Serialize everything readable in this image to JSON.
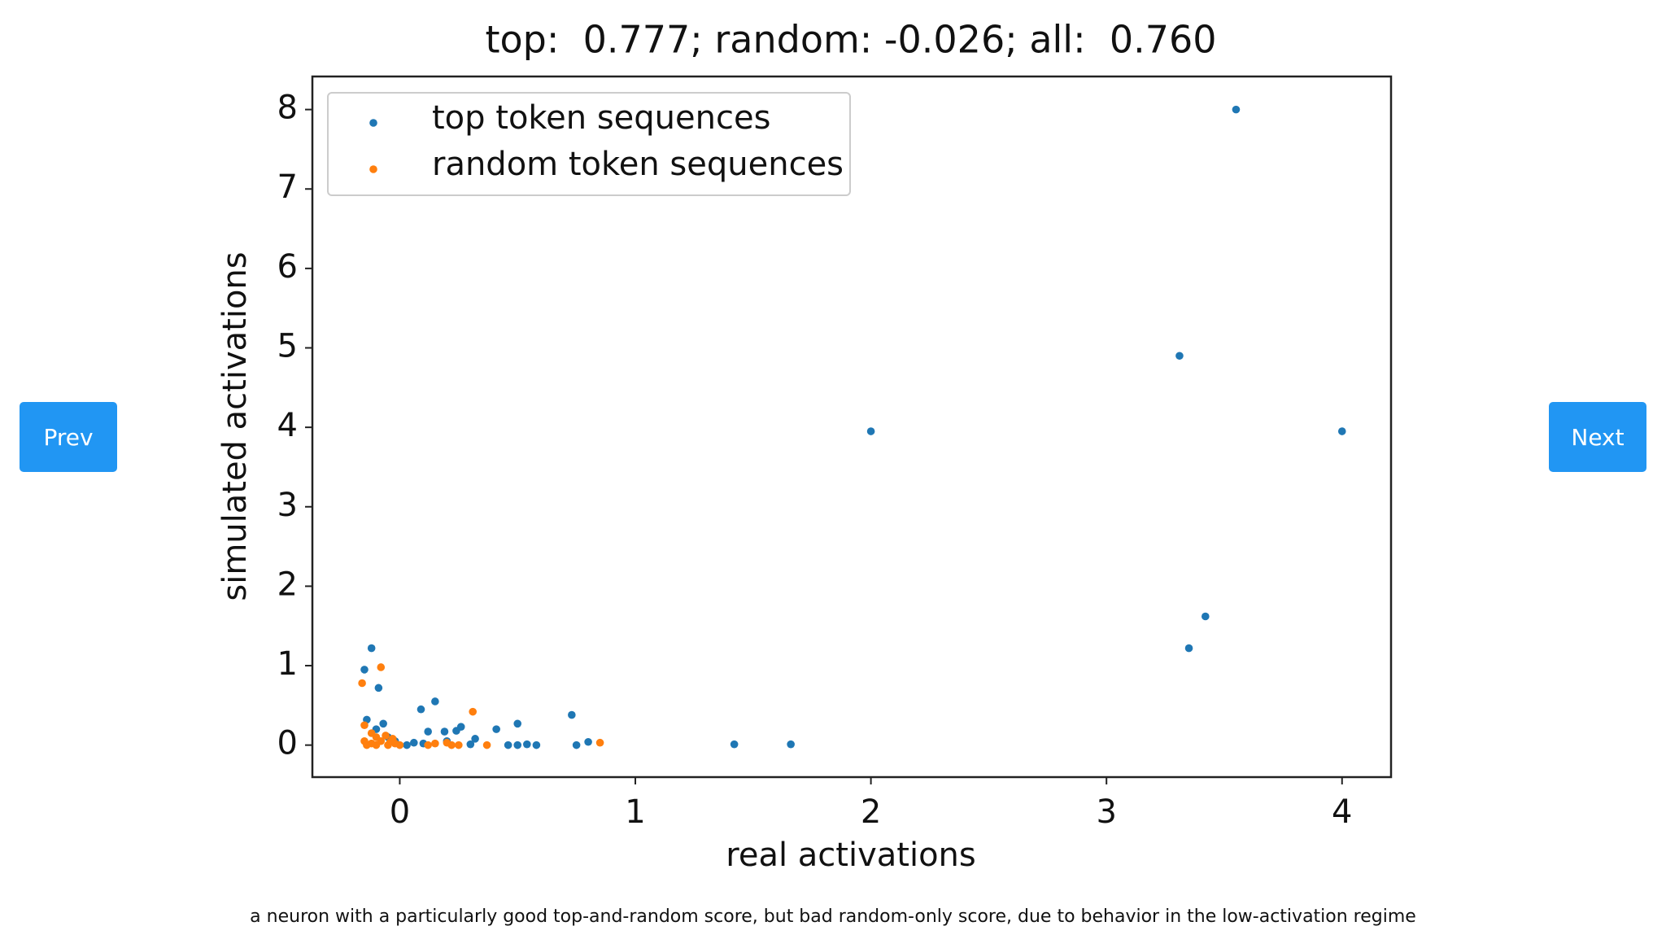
{
  "chart_data": {
    "type": "scatter",
    "title": "top:  0.777; random: -0.026; all:  0.760",
    "xlabel": "real activations",
    "ylabel": "simulated activations",
    "xlim": [
      -0.371,
      4.208
    ],
    "ylim": [
      -0.403,
      8.416
    ],
    "xticks": [
      0,
      1,
      2,
      3,
      4
    ],
    "yticks": [
      0,
      1,
      2,
      3,
      4,
      5,
      6,
      7,
      8
    ],
    "legend": "upper left",
    "series": [
      {
        "name": "top token sequences",
        "color": "#1f77b4",
        "x": [
          3.55,
          3.31,
          4.0,
          2.0,
          3.42,
          3.35,
          -0.12,
          -0.15,
          -0.09,
          0.73,
          0.15,
          0.09,
          0.5,
          0.41,
          0.26,
          0.24,
          0.12,
          0.19,
          1.42,
          1.66,
          0.8,
          0.75,
          0.58,
          0.54,
          0.5,
          0.46,
          0.32,
          0.3,
          0.06,
          -0.14,
          -0.07,
          -0.1,
          -0.05,
          0.03,
          0.1,
          -0.02,
          0.2
        ],
        "values": [
          8.0,
          4.9,
          3.95,
          3.95,
          1.62,
          1.22,
          1.22,
          0.95,
          0.72,
          0.38,
          0.55,
          0.45,
          0.27,
          0.2,
          0.23,
          0.18,
          0.17,
          0.17,
          0.01,
          0.01,
          0.04,
          0.0,
          0.0,
          0.01,
          0.0,
          0.0,
          0.08,
          0.01,
          0.03,
          0.32,
          0.27,
          0.2,
          0.1,
          0.0,
          0.02,
          0.05,
          0.05
        ]
      },
      {
        "name": "random token sequences",
        "color": "#ff7f0e",
        "x": [
          -0.08,
          -0.16,
          0.31,
          0.85,
          0.37,
          0.2,
          0.15,
          0.22,
          0.12,
          0.25,
          -0.15,
          -0.12,
          -0.1,
          -0.08,
          -0.05,
          -0.03,
          -0.14,
          -0.12,
          -0.06,
          -0.02,
          -0.1,
          -0.15,
          0.0,
          -0.04
        ],
        "values": [
          0.98,
          0.78,
          0.42,
          0.03,
          0.0,
          0.03,
          0.02,
          0.0,
          0.0,
          0.0,
          0.25,
          0.15,
          0.1,
          0.05,
          0.0,
          0.08,
          0.0,
          0.02,
          0.12,
          0.02,
          0.0,
          0.05,
          0.0,
          0.04
        ]
      }
    ]
  },
  "buttons": {
    "prev": "Prev",
    "next": "Next"
  },
  "caption": "a neuron with a particularly good top-and-random score, but bad random-only score, due to behavior in the low-activation regime"
}
